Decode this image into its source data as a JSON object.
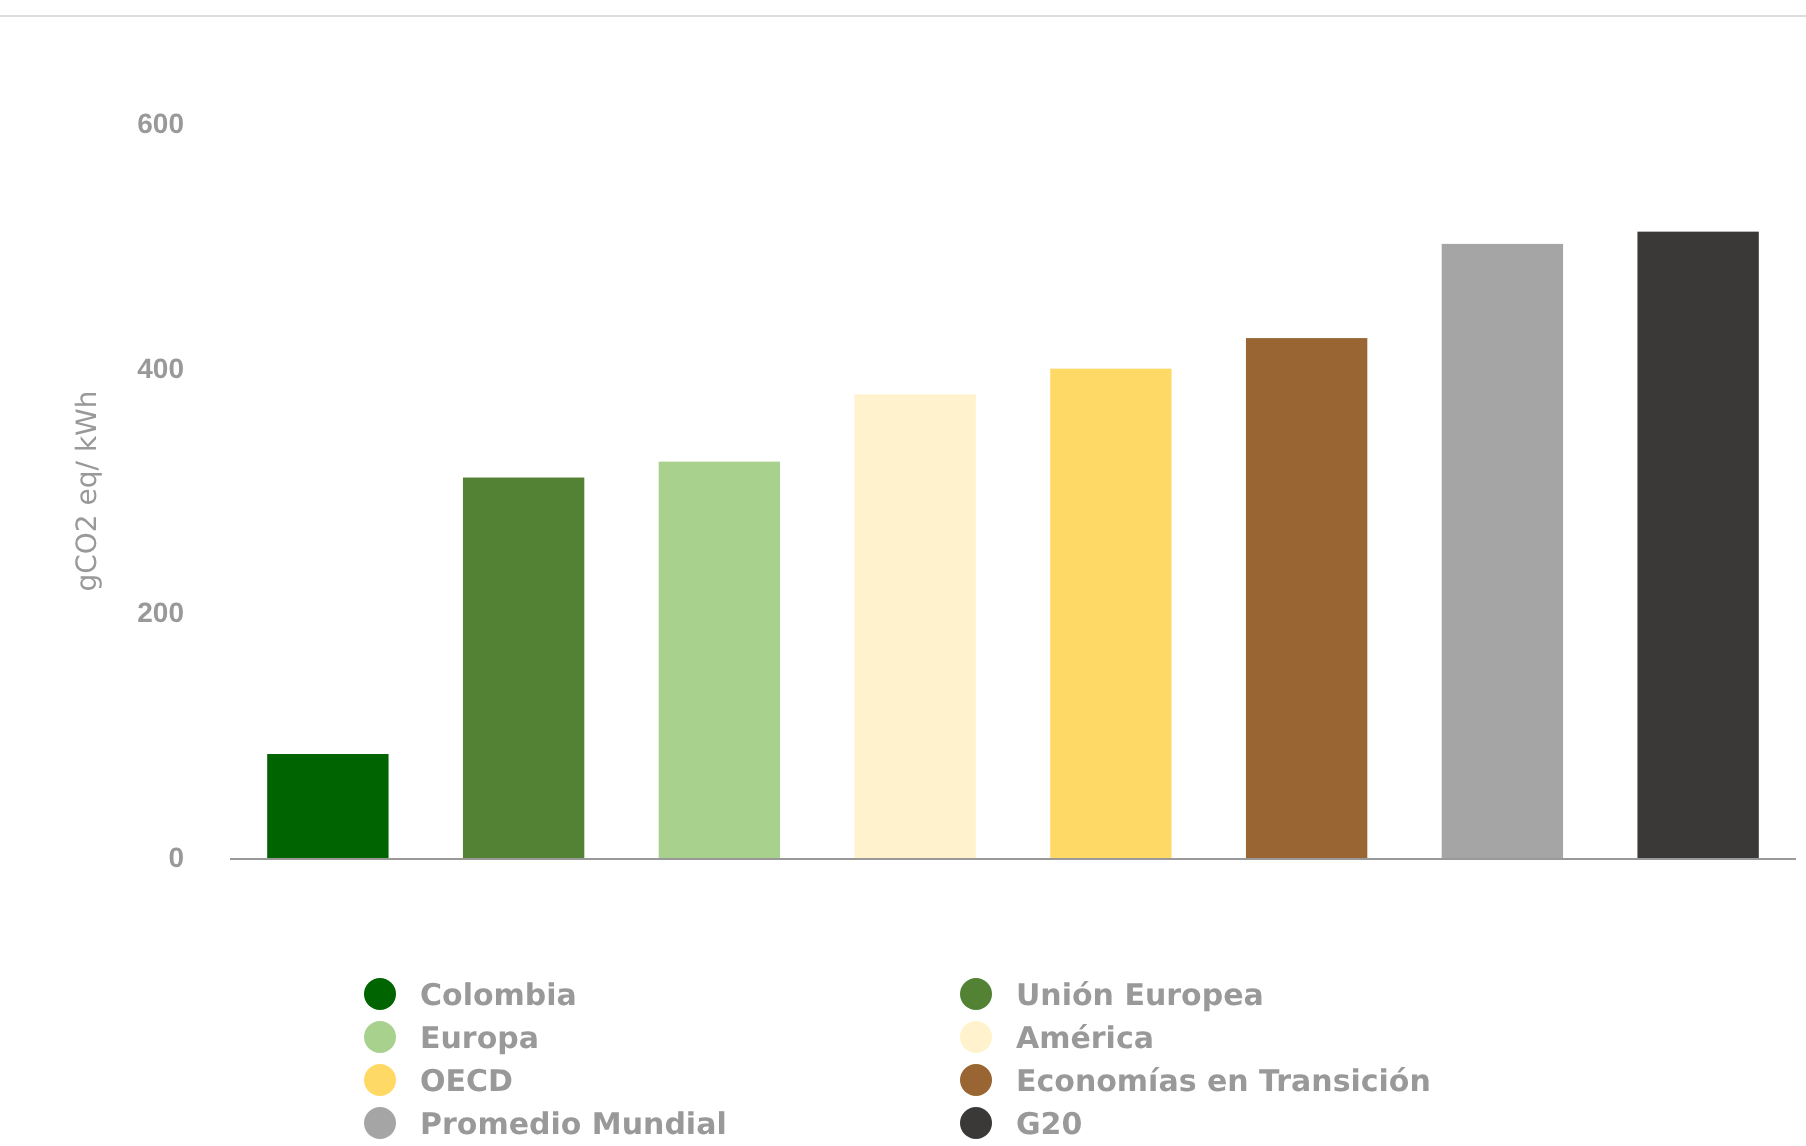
{
  "chart_data": {
    "type": "bar",
    "ylabel": "gCO2 eq/ kWh",
    "categories": [
      null,
      null,
      null,
      null,
      null,
      null,
      null,
      null
    ],
    "series": [
      {
        "name": "Colombia",
        "color": "#006400",
        "values": [
          85,
          null,
          null,
          null,
          null,
          null,
          null,
          null
        ]
      },
      {
        "name": "Unión Europea",
        "color": "#548235",
        "values": [
          null,
          311,
          null,
          null,
          null,
          null,
          null,
          null
        ]
      },
      {
        "name": "Europa",
        "color": "#a9d18e",
        "values": [
          null,
          null,
          324,
          null,
          null,
          null,
          null,
          null
        ]
      },
      {
        "name": "América",
        "color": "#fff2cc",
        "values": [
          null,
          null,
          null,
          379,
          null,
          null,
          null,
          null
        ]
      },
      {
        "name": "OECD",
        "color": "#ffd966",
        "values": [
          null,
          null,
          null,
          null,
          400,
          null,
          null,
          null
        ]
      },
      {
        "name": "Economías en Transición",
        "color": "#996633",
        "values": [
          null,
          null,
          null,
          null,
          null,
          425,
          null,
          null
        ]
      },
      {
        "name": "Promedio Mundial",
        "color": "#a5a5a5",
        "values": [
          null,
          null,
          null,
          null,
          null,
          null,
          502,
          null
        ]
      },
      {
        "name": "G20",
        "color": "#3b3838",
        "values": [
          null,
          null,
          null,
          null,
          null,
          null,
          null,
          512
        ]
      }
    ],
    "ylim": [
      0,
      600
    ],
    "yticks": [
      0,
      200,
      400,
      600
    ],
    "grid": false,
    "legend": "bottom"
  }
}
